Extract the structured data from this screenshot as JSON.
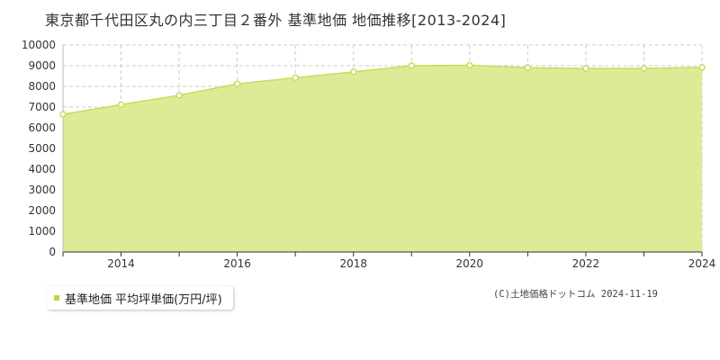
{
  "chart_title": "東京都千代田区丸の内三丁目２番外 基準地価 地価推移[2013-2024]",
  "legend_label": "基準地価 平均坪単価(万円/坪)",
  "copyright": "(C)土地価格ドットコム 2024-11-19",
  "colors": {
    "fill": "#dcec96",
    "line": "#c3de5e",
    "marker_stroke": "#c3de5e",
    "marker_fill": "#ffffff",
    "grid": "#cccccc",
    "legend_marker": "#b8d84a"
  },
  "chart_data": {
    "type": "area",
    "title": "東京都千代田区丸の内三丁目２番外 基準地価 地価推移[2013-2024]",
    "x": [
      2013,
      2014,
      2015,
      2016,
      2017,
      2018,
      2019,
      2020,
      2021,
      2022,
      2023,
      2024
    ],
    "series": [
      {
        "name": "基準地価 平均坪単価(万円/坪)",
        "values": [
          6650,
          7120,
          7570,
          8120,
          8420,
          8700,
          9000,
          9020,
          8900,
          8870,
          8870,
          8920
        ]
      }
    ],
    "x_tick_labels": [
      "2014",
      "2016",
      "2018",
      "2020",
      "2022",
      "2024"
    ],
    "y_tick_labels": [
      "0",
      "1000",
      "2000",
      "3000",
      "4000",
      "5000",
      "6000",
      "7000",
      "8000",
      "9000",
      "10000"
    ],
    "xlim": [
      2013,
      2024
    ],
    "ylim": [
      0,
      10000
    ],
    "grid": true,
    "legend_position": "bottom-left"
  }
}
